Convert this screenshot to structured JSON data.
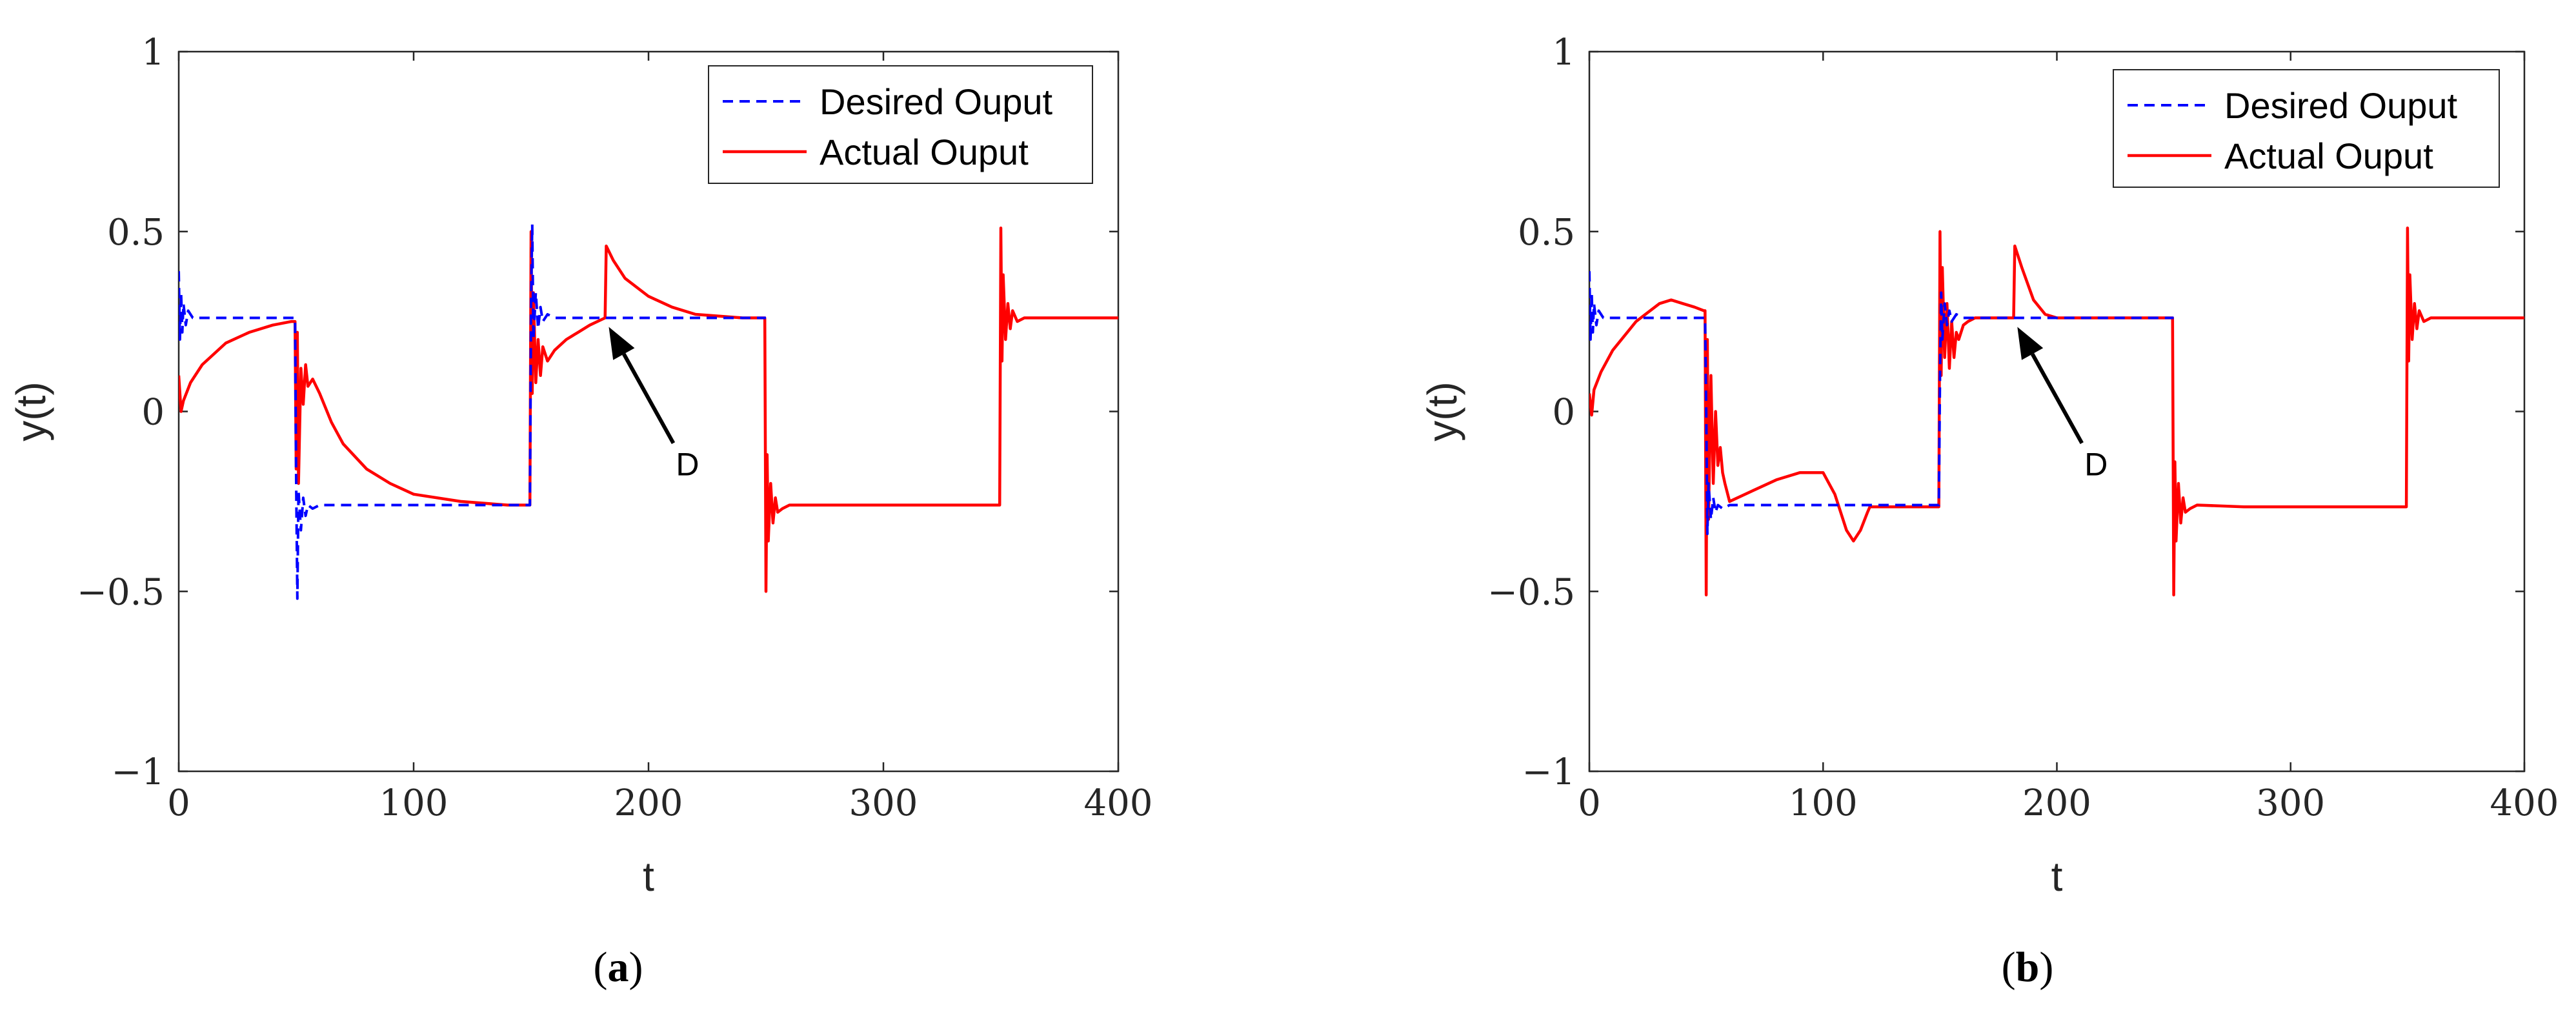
{
  "colors": {
    "desired": "#0000ff",
    "actual": "#ff0000",
    "axis": "#262626",
    "arrow": "#000000"
  },
  "chart_data": [
    {
      "type": "line",
      "caption_open": "(",
      "caption_letter": "a",
      "caption_close": ")",
      "xlabel": "t",
      "ylabel": "y(t)",
      "xlim": [
        0,
        400
      ],
      "ylim": [
        -1,
        1
      ],
      "xticks": [
        "0",
        "100",
        "200",
        "300",
        "400"
      ],
      "yticks": [
        "−1",
        "−0.5",
        "0",
        "0.5",
        "1"
      ],
      "xtick_values": [
        0,
        100,
        200,
        300,
        400
      ],
      "ytick_values": [
        -1,
        -0.5,
        0,
        0.5,
        1
      ],
      "grid": false,
      "legend_position": "top-right",
      "annotation": {
        "text": "D",
        "points_to": [
          182,
          0.26
        ]
      },
      "series": [
        {
          "name": "Desired Ouput",
          "style": "dashed",
          "color": "#0000ff",
          "x": [
            0,
            0.5,
            1,
            1.5,
            2,
            3,
            4,
            6,
            10,
            49.5,
            50,
            50.5,
            51,
            52,
            53,
            54,
            55,
            57,
            60,
            149.5,
            150,
            150.5,
            151,
            152,
            153,
            154,
            155,
            157,
            160,
            250
          ],
          "y": [
            0.39,
            0.2,
            0.33,
            0.22,
            0.3,
            0.24,
            0.28,
            0.26,
            0.26,
            0.26,
            -0.2,
            -0.52,
            -0.22,
            -0.33,
            -0.24,
            -0.29,
            -0.26,
            -0.27,
            -0.26,
            -0.26,
            0.3,
            0.52,
            0.2,
            0.33,
            0.23,
            0.29,
            0.25,
            0.27,
            0.26,
            0.26
          ]
        },
        {
          "name": "Actual Ouput",
          "style": "solid",
          "color": "#ff0000",
          "x": [
            0,
            1,
            2,
            5,
            10,
            20,
            30,
            40,
            48,
            49.5,
            50,
            50.5,
            51,
            52,
            53,
            54,
            55,
            57,
            60,
            65,
            70,
            80,
            90,
            100,
            120,
            140,
            149,
            149.5,
            150,
            150.5,
            151,
            152,
            153,
            154,
            155,
            157,
            160,
            165,
            170,
            175,
            181.5,
            182,
            185,
            190,
            200,
            210,
            220,
            230,
            240,
            249.5,
            250,
            250.5,
            251,
            252,
            253,
            254,
            255,
            257,
            260,
            280,
            300,
            320,
            340,
            349.5,
            350,
            350.5,
            351,
            352,
            353,
            354,
            355,
            357,
            360,
            380,
            400
          ],
          "y": [
            0.1,
            0.0,
            0.03,
            0.08,
            0.13,
            0.19,
            0.22,
            0.24,
            0.25,
            0.25,
            -0.16,
            0.22,
            -0.2,
            0.12,
            0.02,
            0.13,
            0.07,
            0.09,
            0.05,
            -0.03,
            -0.09,
            -0.16,
            -0.2,
            -0.23,
            -0.25,
            -0.26,
            -0.26,
            -0.26,
            0.5,
            0.05,
            0.33,
            0.08,
            0.2,
            0.1,
            0.18,
            0.14,
            0.17,
            0.2,
            0.22,
            0.24,
            0.26,
            0.46,
            0.42,
            0.37,
            0.32,
            0.29,
            0.27,
            0.265,
            0.26,
            0.26,
            -0.5,
            -0.12,
            -0.36,
            -0.2,
            -0.31,
            -0.24,
            -0.28,
            -0.27,
            -0.26,
            -0.26,
            -0.26,
            -0.26,
            -0.26,
            -0.26,
            0.51,
            0.14,
            0.38,
            0.2,
            0.3,
            0.23,
            0.28,
            0.25,
            0.26,
            0.26,
            0.26
          ]
        }
      ]
    },
    {
      "type": "line",
      "caption_open": "(",
      "caption_letter": "b",
      "caption_close": ")",
      "xlabel": "t",
      "ylabel": "y(t)",
      "xlim": [
        0,
        400
      ],
      "ylim": [
        -1,
        1
      ],
      "xticks": [
        "0",
        "100",
        "200",
        "300",
        "400"
      ],
      "yticks": [
        "−1",
        "−0.5",
        "0",
        "0.5",
        "1"
      ],
      "xtick_values": [
        0,
        100,
        200,
        300,
        400
      ],
      "ytick_values": [
        -1,
        -0.5,
        0,
        0.5,
        1
      ],
      "grid": false,
      "legend_position": "top-right",
      "annotation": {
        "text": "D",
        "points_to": [
          182,
          0.26
        ]
      },
      "series": [
        {
          "name": "Desired Ouput",
          "style": "dashed",
          "color": "#0000ff",
          "x": [
            0,
            0.5,
            1,
            1.5,
            2,
            3,
            4,
            6,
            10,
            49.5,
            50,
            50.5,
            51,
            52,
            53,
            54,
            55,
            57,
            60,
            149.5,
            150,
            150.5,
            151,
            152,
            153,
            154,
            155,
            157,
            160,
            250
          ],
          "y": [
            0.39,
            0.2,
            0.33,
            0.22,
            0.3,
            0.24,
            0.28,
            0.26,
            0.26,
            0.26,
            0.0,
            -0.34,
            -0.2,
            -0.3,
            -0.24,
            -0.28,
            -0.26,
            -0.27,
            -0.26,
            -0.26,
            0.1,
            0.33,
            0.2,
            0.3,
            0.24,
            0.28,
            0.25,
            0.27,
            0.26,
            0.26
          ]
        },
        {
          "name": "Actual Ouput",
          "style": "solid",
          "color": "#ff0000",
          "x": [
            0,
            1,
            2,
            5,
            10,
            20,
            30,
            35,
            40,
            45,
            49,
            49.5,
            50,
            50.5,
            51,
            52,
            53,
            54,
            55,
            56,
            57,
            58,
            60,
            70,
            80,
            90,
            100,
            105,
            110,
            113,
            116,
            119,
            120,
            140,
            149,
            149.5,
            150,
            150.5,
            151,
            152,
            153,
            154,
            155,
            156,
            157,
            158,
            160,
            162,
            165,
            170,
            175,
            181.5,
            182,
            185,
            190,
            195,
            200,
            210,
            220,
            240,
            249.5,
            250,
            250.5,
            251,
            252,
            253,
            254,
            255,
            257,
            260,
            280,
            300,
            320,
            340,
            349.5,
            350,
            350.5,
            351,
            352,
            353,
            354,
            355,
            357,
            360,
            380,
            400
          ],
          "y": [
            0.05,
            -0.01,
            0.06,
            0.11,
            0.17,
            0.25,
            0.3,
            0.31,
            0.3,
            0.29,
            0.28,
            0.28,
            -0.51,
            0.2,
            -0.3,
            0.1,
            -0.2,
            0.0,
            -0.15,
            -0.1,
            -0.17,
            -0.2,
            -0.25,
            -0.22,
            -0.19,
            -0.17,
            -0.17,
            -0.23,
            -0.33,
            -0.36,
            -0.33,
            -0.28,
            -0.265,
            -0.265,
            -0.265,
            -0.265,
            0.5,
            0.1,
            0.4,
            0.15,
            0.3,
            0.12,
            0.25,
            0.15,
            0.22,
            0.2,
            0.24,
            0.25,
            0.26,
            0.26,
            0.26,
            0.26,
            0.46,
            0.4,
            0.31,
            0.27,
            0.26,
            0.26,
            0.26,
            0.26,
            0.26,
            -0.51,
            -0.14,
            -0.36,
            -0.2,
            -0.31,
            -0.24,
            -0.28,
            -0.27,
            -0.26,
            -0.265,
            -0.265,
            -0.265,
            -0.265,
            -0.265,
            0.51,
            0.14,
            0.38,
            0.2,
            0.3,
            0.23,
            0.28,
            0.25,
            0.26,
            0.26,
            0.26
          ]
        }
      ]
    }
  ]
}
